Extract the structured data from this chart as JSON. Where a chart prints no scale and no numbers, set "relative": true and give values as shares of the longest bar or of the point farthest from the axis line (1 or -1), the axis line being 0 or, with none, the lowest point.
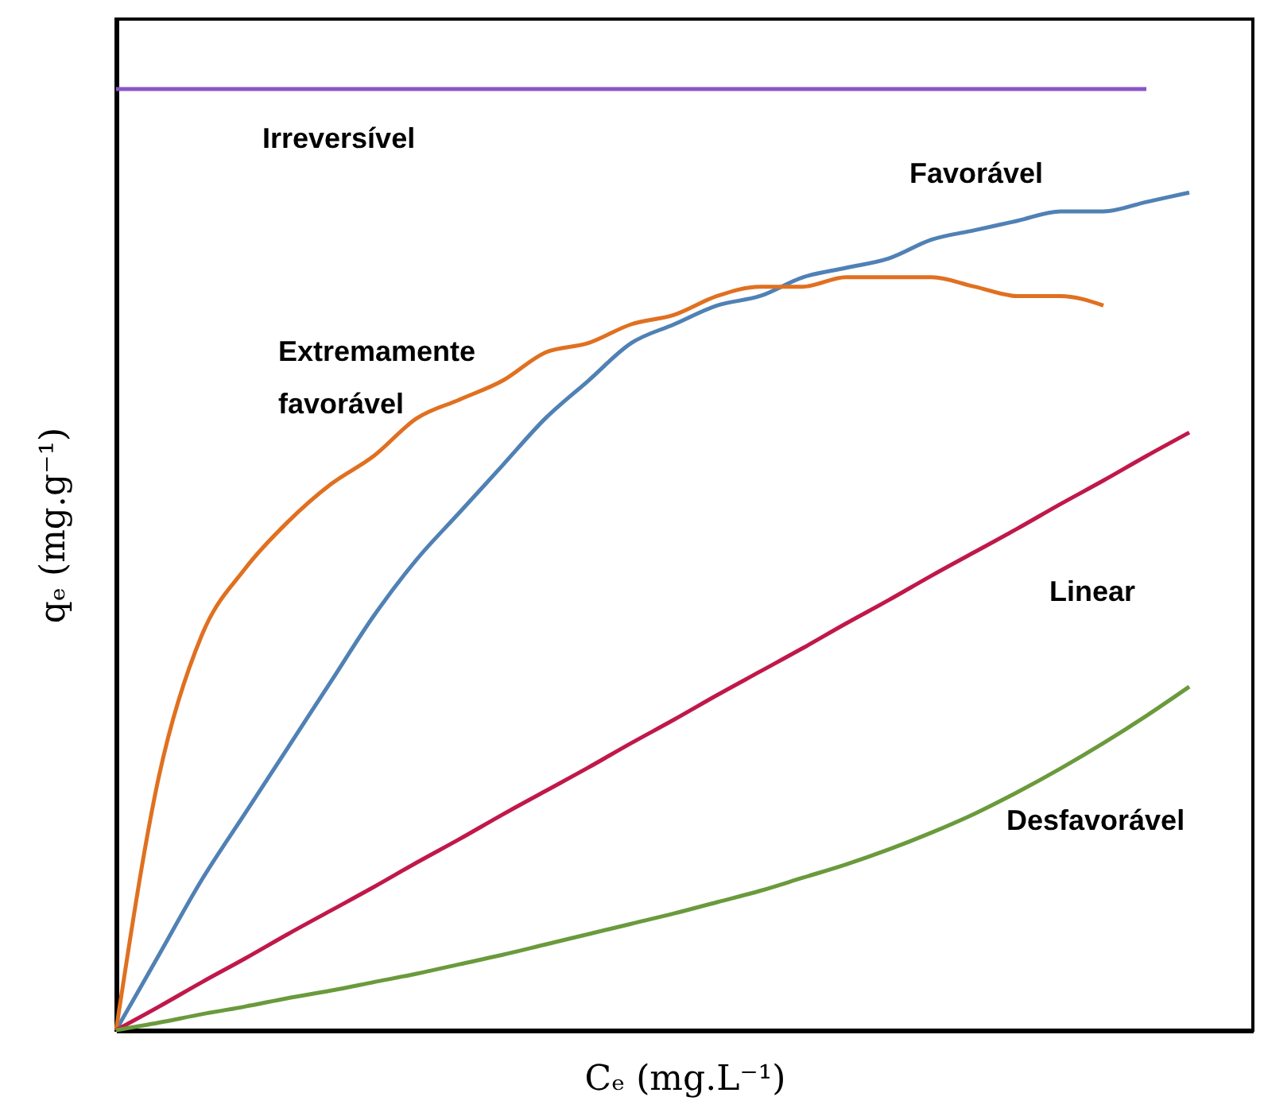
{
  "chart_data": {
    "type": "line",
    "relative": true,
    "tick_labels": false,
    "xlabel": "Cₑ (mg.L⁻¹)",
    "ylabel": "qₑ (mg.g⁻¹)",
    "categories": [
      null,
      null,
      null,
      null,
      null,
      null,
      null,
      null,
      null,
      null,
      null,
      null,
      null,
      null,
      null,
      null,
      null,
      null,
      null,
      null,
      null,
      null,
      null,
      null,
      null,
      null
    ],
    "series": [
      {
        "name": "Irreversível",
        "color": "#8a55c8",
        "values": [
          1,
          1,
          1,
          1,
          1,
          1,
          1,
          1,
          1,
          1,
          1,
          1,
          1,
          1,
          1,
          1,
          1,
          1,
          1,
          1,
          1,
          1,
          1,
          1,
          1,
          null
        ]
      },
      {
        "name": "Favorável",
        "color": "#5081b5",
        "values": [
          0,
          0.08,
          0.16,
          0.23,
          0.3,
          0.37,
          0.44,
          0.5,
          0.55,
          0.6,
          0.65,
          0.69,
          0.73,
          0.75,
          0.77,
          0.78,
          0.8,
          0.81,
          0.82,
          0.84,
          0.85,
          0.86,
          0.87,
          0.87,
          0.88,
          0.89
        ]
      },
      {
        "name": "Extremamente favorável",
        "color": "#e07020",
        "values": [
          0,
          0.27,
          0.42,
          0.49,
          0.54,
          0.58,
          0.61,
          0.65,
          0.67,
          0.69,
          0.72,
          0.73,
          0.75,
          0.76,
          0.78,
          0.79,
          0.79,
          0.8,
          0.8,
          0.8,
          0.79,
          0.78,
          0.78,
          0.77,
          null,
          null
        ]
      },
      {
        "name": "Linear",
        "color": "#c0184a",
        "values": [
          0,
          0.025,
          0.051,
          0.076,
          0.102,
          0.127,
          0.152,
          0.178,
          0.203,
          0.229,
          0.254,
          0.279,
          0.305,
          0.33,
          0.356,
          0.381,
          0.406,
          0.432,
          0.457,
          0.483,
          0.508,
          0.533,
          0.559,
          0.584,
          0.61,
          0.635
        ]
      },
      {
        "name": "Desfavorável",
        "color": "#6a9a3c",
        "values": [
          0,
          0.008,
          0.017,
          0.025,
          0.034,
          0.042,
          0.051,
          0.06,
          0.07,
          0.08,
          0.091,
          0.102,
          0.113,
          0.124,
          0.136,
          0.148,
          0.162,
          0.176,
          0.192,
          0.21,
          0.23,
          0.253,
          0.278,
          0.305,
          0.334,
          0.365
        ]
      }
    ]
  }
}
